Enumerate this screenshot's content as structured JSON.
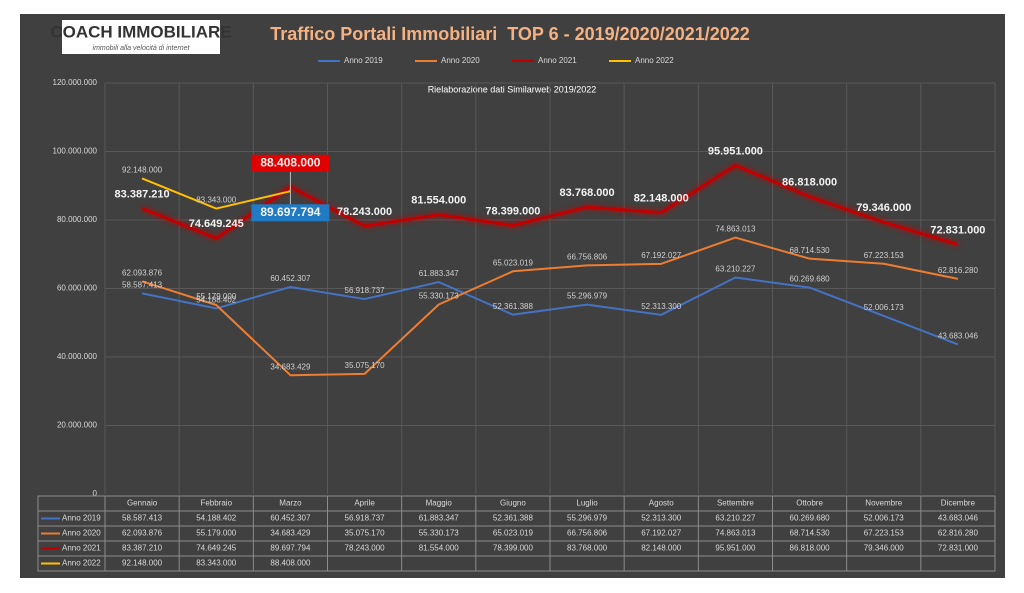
{
  "chart_data": {
    "type": "line",
    "logo": {
      "title": "COACH IMMOBILIARE",
      "tagline": "immobili alla velocità di internet"
    },
    "title": "Traffico Portali Immobiliari  TOP 6 - 2019/2020/2021/2022",
    "subtitle": "Rielaborazione dati Similarweb 2019/2022",
    "categories": [
      "Gennaio",
      "Febbraio",
      "Marzo",
      "Aprile",
      "Maggio",
      "Giugno",
      "Luglio",
      "Agosto",
      "Settembre",
      "Ottobre",
      "Novembre",
      "Dicembre"
    ],
    "series": [
      {
        "name": "Anno 2019",
        "color": "#4472c4",
        "values": [
          58587413,
          54188402,
          60452307,
          56918737,
          61883347,
          52361388,
          55296979,
          52313300,
          63210227,
          60269680,
          52006173,
          43683046
        ],
        "value_labels": [
          "58.587.413",
          "54.188.402",
          "60.452.307",
          "56.918.737",
          "61.883.347",
          "52.361.388",
          "55.296.979",
          "52.313.300",
          "63.210.227",
          "60.269.680",
          "52.006.173",
          "43.683.046"
        ]
      },
      {
        "name": "Anno 2020",
        "color": "#ed7d31",
        "values": [
          62093876,
          55179000,
          34683429,
          35075170,
          55330173,
          65023019,
          66756806,
          67192027,
          74863013,
          68714530,
          67223153,
          62816280
        ],
        "value_labels": [
          "62.093.876",
          "55.179.000",
          "34.683.429",
          "35.075.170",
          "55.330.173",
          "65.023.019",
          "66.756.806",
          "67.192.027",
          "74.863.013",
          "68.714.530",
          "67.223.153",
          "62.816.280"
        ]
      },
      {
        "name": "Anno 2021",
        "color": "#c00000",
        "values": [
          83387210,
          74649245,
          89697794,
          78243000,
          81554000,
          78399000,
          83768000,
          82148000,
          95951000,
          86818000,
          79346000,
          72831000
        ],
        "value_labels": [
          "83.387.210",
          "74.649.245",
          "89.697.794",
          "78.243.000",
          "81.554.000",
          "78.399.000",
          "83.768.000",
          "82.148.000",
          "95.951.000",
          "86.818.000",
          "79.346.000",
          "72.831.000"
        ]
      },
      {
        "name": "Anno 2022",
        "color": "#ffc000",
        "values": [
          92148000,
          83343000,
          88408000,
          null,
          null,
          null,
          null,
          null,
          null,
          null,
          null,
          null
        ],
        "value_labels": [
          "92.148.000",
          "83.343.000",
          "88.408.000",
          null,
          null,
          null,
          null,
          null,
          null,
          null,
          null,
          null
        ]
      }
    ],
    "ylim": [
      0,
      120000000
    ],
    "yticks": [
      0,
      {
        "value": 20000000,
        "label": "20.000.000"
      },
      {
        "value": 40000000,
        "label": "40.000.000"
      },
      {
        "value": 60000000,
        "label": "60.000.000"
      },
      {
        "value": 80000000,
        "label": "80.000.000"
      },
      {
        "value": 100000000,
        "label": "100.000.000"
      },
      {
        "value": 120000000,
        "label": "120.000.000"
      }
    ],
    "grid": true,
    "legend": "top"
  }
}
